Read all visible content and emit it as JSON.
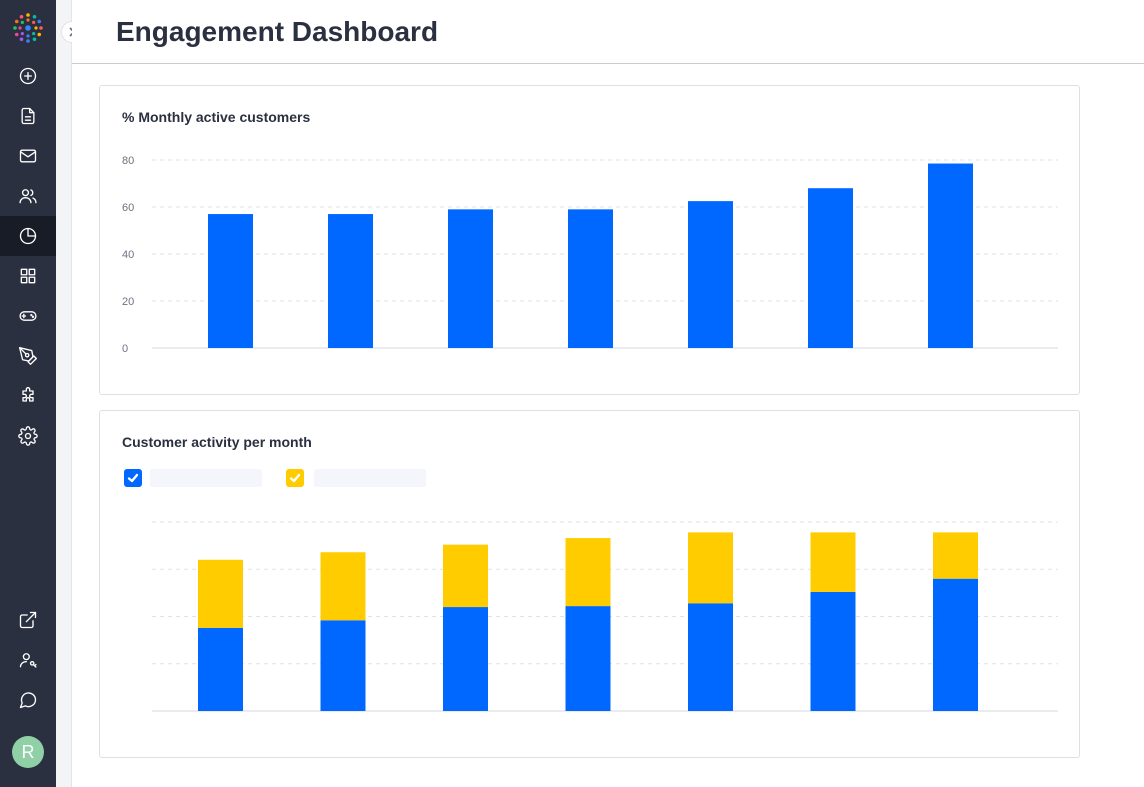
{
  "header": {
    "title": "Engagement Dashboard"
  },
  "sidebar": {
    "items": [
      {
        "name": "add",
        "icon": "plus-circle-icon"
      },
      {
        "name": "documents",
        "icon": "document-icon"
      },
      {
        "name": "mail",
        "icon": "mail-icon"
      },
      {
        "name": "users",
        "icon": "users-icon"
      },
      {
        "name": "analytics",
        "icon": "pie-chart-icon",
        "active": true
      },
      {
        "name": "apps",
        "icon": "grid-icon"
      },
      {
        "name": "games",
        "icon": "gamepad-icon"
      },
      {
        "name": "design",
        "icon": "pen-tool-icon"
      },
      {
        "name": "integrations",
        "icon": "puzzle-icon"
      },
      {
        "name": "settings",
        "icon": "gear-icon"
      }
    ],
    "bottom_items": [
      {
        "name": "external",
        "icon": "external-link-icon"
      },
      {
        "name": "user-settings",
        "icon": "user-key-icon"
      },
      {
        "name": "chat",
        "icon": "chat-bubble-icon"
      }
    ],
    "avatar_initial": "R"
  },
  "cards": {
    "monthly_active": {
      "title": "% Monthly active customers"
    },
    "activity": {
      "title": "Customer activity per month"
    }
  },
  "colors": {
    "primary": "#0068ff",
    "secondary": "#ffcc00",
    "sidebar": "#2b3040",
    "sidebar_active": "#181c27"
  },
  "chart_data": [
    {
      "type": "bar",
      "title": "% Monthly active customers",
      "categories": [
        "",
        "",
        "",
        "",
        "",
        "",
        ""
      ],
      "values": [
        57,
        57,
        59,
        59,
        62.5,
        68,
        78.5
      ],
      "yticks": [
        0,
        20,
        40,
        60,
        80
      ],
      "ylim": [
        0,
        80
      ],
      "grid": true
    },
    {
      "type": "bar",
      "stacked": true,
      "title": "Customer activity per month",
      "categories": [
        "",
        "",
        "",
        "",
        "",
        "",
        ""
      ],
      "series": [
        {
          "values": [
            44,
            48,
            55,
            55.5,
            57,
            63,
            70
          ]
        },
        {
          "values": [
            36,
            36,
            33,
            36,
            37.5,
            31.5,
            24.5
          ]
        }
      ],
      "ylim": [
        0,
        100
      ],
      "grid": true,
      "legend": "top-left",
      "legend_checked": [
        true,
        true
      ]
    }
  ]
}
